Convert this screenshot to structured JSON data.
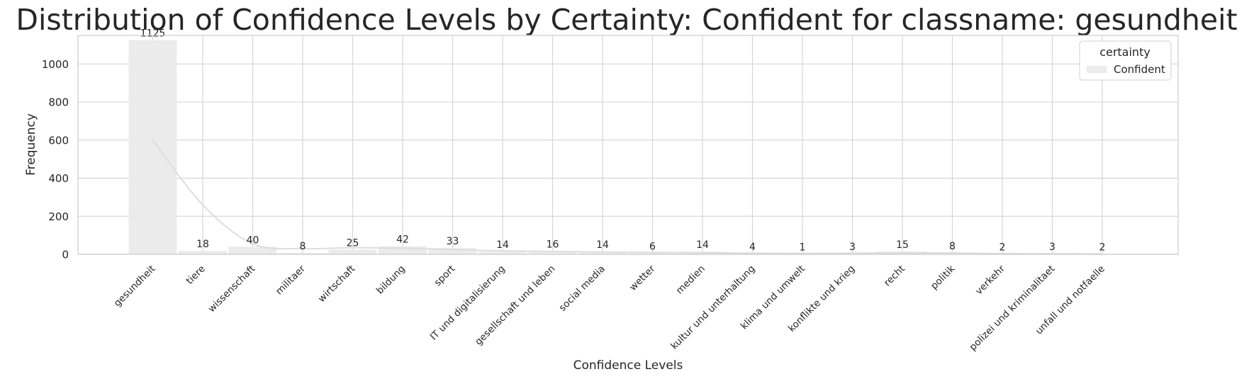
{
  "chart_data": {
    "type": "bar",
    "title": "Distribution of Confidence Levels by Certainty: Confident for classname: gesundheit",
    "xlabel": "Confidence Levels",
    "ylabel": "Frequency",
    "ylim": [
      0,
      1150
    ],
    "yticks": [
      0,
      200,
      400,
      600,
      800,
      1000
    ],
    "grid": true,
    "categories": [
      "gesundheit",
      "tiere",
      "wissenschaft",
      "militaer",
      "wirtschaft",
      "bildung",
      "sport",
      "IT und digitalisierung",
      "gesellschaft und leben",
      "social media",
      "wetter",
      "medien",
      "kultur und unterhaltung",
      "klima und umwelt",
      "konflikte und krieg",
      "recht",
      "politik",
      "verkehr",
      "polizei und kriminalitaet",
      "unfall und notfaelle"
    ],
    "series": [
      {
        "name": "Confident",
        "values": [
          1125,
          18,
          40,
          8,
          25,
          42,
          33,
          14,
          16,
          14,
          6,
          14,
          4,
          1,
          3,
          15,
          8,
          2,
          3,
          2
        ]
      }
    ],
    "kde": {
      "values": [
        600,
        260,
        55,
        30,
        35,
        32,
        25,
        18,
        15,
        12,
        10,
        8,
        6,
        5,
        6,
        8,
        7,
        4,
        3,
        2
      ]
    },
    "legend": {
      "title": "certainty",
      "entries": [
        "Confident"
      ],
      "position": "top-right"
    },
    "colors": {
      "bar": "#ebebeb",
      "kde": "#dddddd",
      "grid": "#d6d6d6",
      "frame": "#cccccc"
    }
  }
}
